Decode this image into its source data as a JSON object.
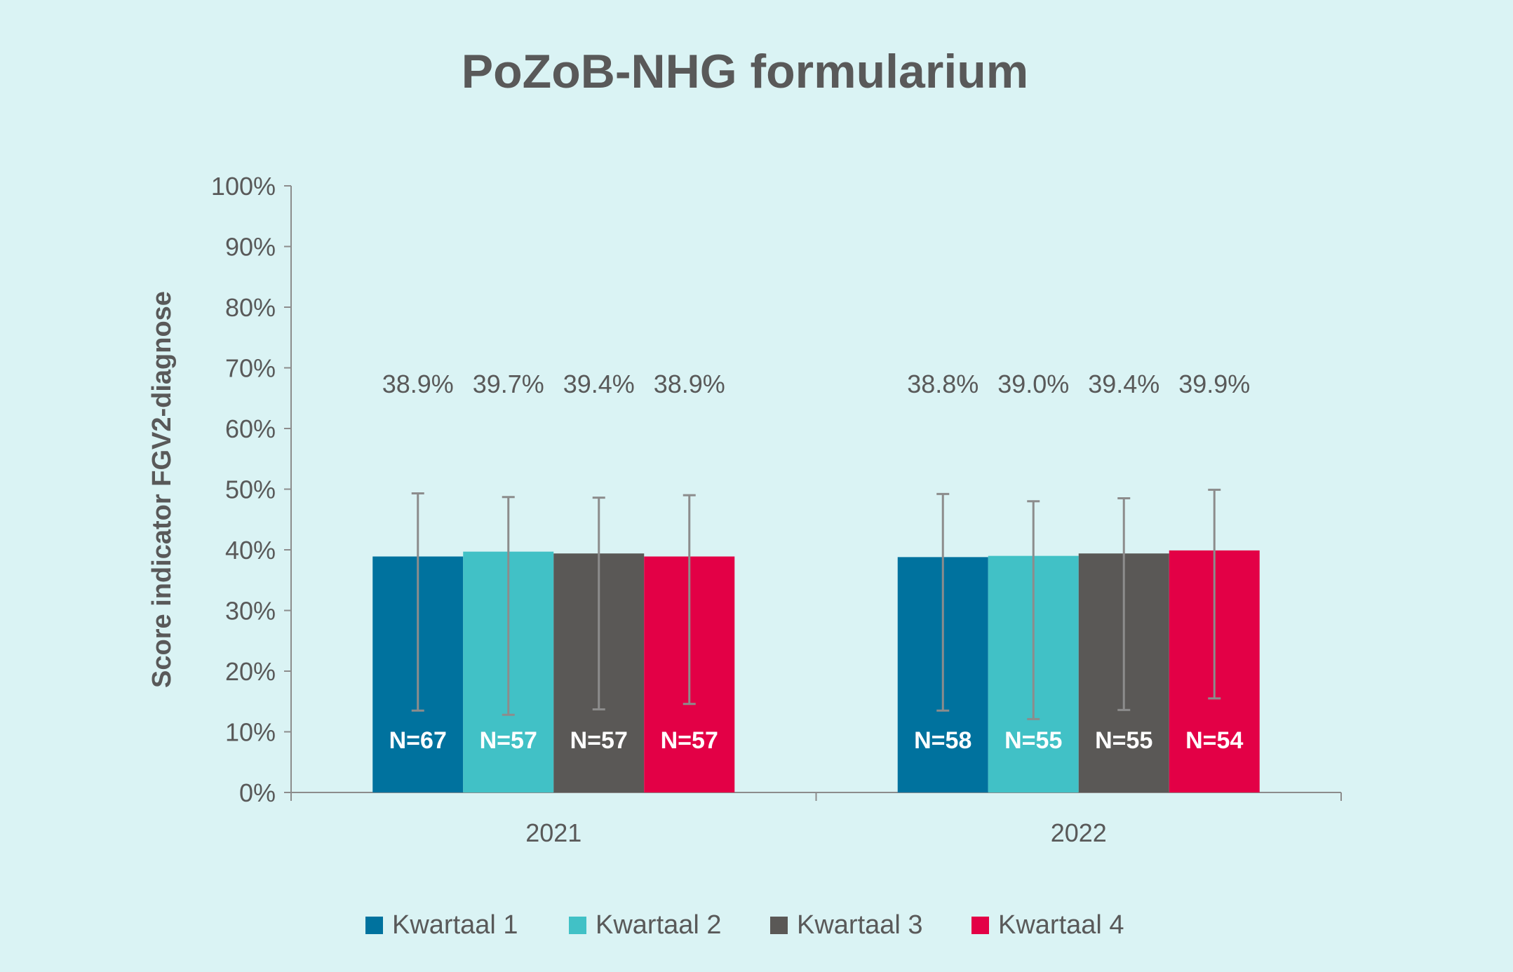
{
  "chart_data": {
    "type": "bar",
    "title": "PoZoB-NHG formularium",
    "xlabel": "",
    "ylabel": "Score indicator FGV2-diagnose",
    "ylim": [
      0,
      100
    ],
    "yticks": [
      "0%",
      "10%",
      "20%",
      "30%",
      "40%",
      "50%",
      "60%",
      "70%",
      "80%",
      "90%",
      "100%"
    ],
    "categories": [
      "2021",
      "2022"
    ],
    "legend_position": "bottom",
    "grid": false,
    "series": [
      {
        "name": "Kwartaal 1",
        "color": "#00729e",
        "values": [
          38.9,
          38.8
        ],
        "value_labels": [
          "38.9%",
          "38.8%"
        ],
        "err_low": [
          13.5,
          13.5
        ],
        "err_high": [
          49.3,
          49.2
        ],
        "n_labels": [
          "N=67",
          "N=58"
        ]
      },
      {
        "name": "Kwartaal 2",
        "color": "#41c1c6",
        "values": [
          39.7,
          39.0
        ],
        "value_labels": [
          "39.7%",
          "39.0%"
        ],
        "err_low": [
          12.8,
          12.1
        ],
        "err_high": [
          48.7,
          48.0
        ],
        "n_labels": [
          "N=57",
          "N=55"
        ]
      },
      {
        "name": "Kwartaal 3",
        "color": "#5a5856",
        "values": [
          39.4,
          39.4
        ],
        "value_labels": [
          "39.4%",
          "39.4%"
        ],
        "err_low": [
          13.7,
          13.6
        ],
        "err_high": [
          48.6,
          48.5
        ],
        "n_labels": [
          "N=57",
          "N=55"
        ]
      },
      {
        "name": "Kwartaal 4",
        "color": "#e30046",
        "values": [
          38.9,
          39.9
        ],
        "value_labels": [
          "38.9%",
          "39.9%"
        ],
        "err_low": [
          14.6,
          15.5
        ],
        "err_high": [
          49.0,
          49.9
        ],
        "n_labels": [
          "N=57",
          "N=54"
        ]
      }
    ]
  }
}
